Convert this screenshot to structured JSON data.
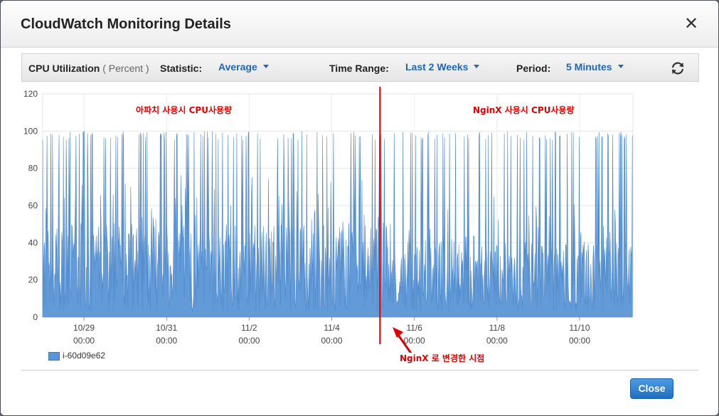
{
  "dialog": {
    "title": "CloudWatch Monitoring Details",
    "close_icon": "close-icon",
    "close_button_label": "Close"
  },
  "toolbar": {
    "metric_name": "CPU Utilization",
    "metric_unit": "( Percent )",
    "statistic_label": "Statistic:",
    "statistic_value": "Average",
    "time_range_label": "Time Range:",
    "time_range_value": "Last 2 Weeks",
    "period_label": "Period:",
    "period_value": "5 Minutes",
    "refresh_icon": "refresh-icon"
  },
  "legend": {
    "series_name": "i-60d09e62"
  },
  "annotations": {
    "left_label": "아파치 사용시 CPU사용량",
    "right_label": "NginX 사용시 CPU사용량",
    "change_label": "NginX 로 변경한 시점",
    "change_x": "11/5 04:00"
  },
  "colors": {
    "series": "#5b95d6",
    "annotation": "#e00000",
    "link": "#1f66b5"
  },
  "chart_data": {
    "type": "area",
    "ylim": [
      0,
      120
    ],
    "yticks": [
      0,
      20,
      40,
      60,
      80,
      100,
      120
    ],
    "xticks": [
      {
        "date": "10/29",
        "time": "00:00"
      },
      {
        "date": "10/31",
        "time": "00:00"
      },
      {
        "date": "11/2",
        "time": "00:00"
      },
      {
        "date": "11/4",
        "time": "00:00"
      },
      {
        "date": "11/6",
        "time": "00:00"
      },
      {
        "date": "11/8",
        "time": "00:00"
      },
      {
        "date": "11/10",
        "time": "00:00"
      }
    ],
    "x_range": [
      "10/28 00:00",
      "11/11 07:00"
    ],
    "grid": true,
    "legend_placement": "bottom-left",
    "series": [
      {
        "name": "i-60d09e62",
        "segments": [
          {
            "from": "10/28 00:00",
            "to": "11/5 04:00",
            "min": 3,
            "max": 100,
            "typical": [
              10,
              50
            ]
          },
          {
            "from": "11/5 04:00",
            "to": "11/11 07:00",
            "min": 3,
            "max": 100,
            "typical": [
              8,
              40
            ]
          }
        ]
      }
    ]
  }
}
